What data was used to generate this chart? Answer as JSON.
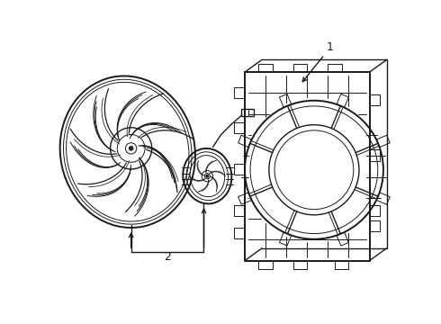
{
  "bg_color": "#ffffff",
  "line_color": "#1a1a1a",
  "lw_thin": 0.7,
  "lw_med": 1.0,
  "lw_thick": 1.4,
  "fig_width": 4.9,
  "fig_height": 3.6,
  "dpi": 100,
  "label_fontsize": 9
}
